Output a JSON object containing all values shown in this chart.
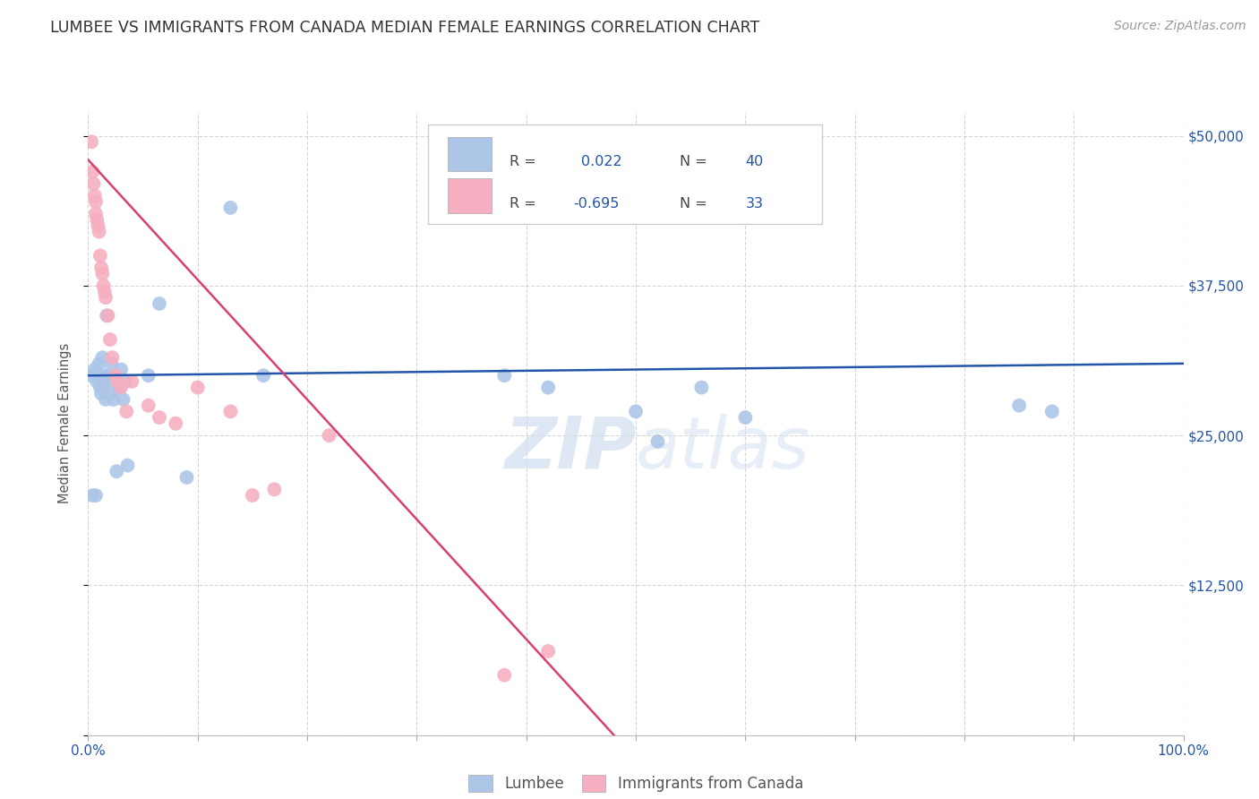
{
  "title": "LUMBEE VS IMMIGRANTS FROM CANADA MEDIAN FEMALE EARNINGS CORRELATION CHART",
  "source": "Source: ZipAtlas.com",
  "ylabel": "Median Female Earnings",
  "yticks": [
    0,
    12500,
    25000,
    37500,
    50000
  ],
  "ytick_labels": [
    "",
    "$12,500",
    "$25,000",
    "$37,500",
    "$50,000"
  ],
  "ylim": [
    0,
    52000
  ],
  "xlim": [
    0.0,
    1.0
  ],
  "legend_r_blue": "0.022",
  "legend_n_blue": "40",
  "legend_r_pink": "-0.695",
  "legend_n_pink": "33",
  "blue_color": "#adc6e8",
  "pink_color": "#f5afc0",
  "line_blue_color": "#2255aa",
  "line_pink_color": "#d94070",
  "watermark_color": "#d0dff0",
  "blue_scatter_x": [
    0.003,
    0.004,
    0.006,
    0.007,
    0.008,
    0.009,
    0.01,
    0.011,
    0.012,
    0.013,
    0.014,
    0.015,
    0.016,
    0.017,
    0.018,
    0.019,
    0.02,
    0.021,
    0.022,
    0.023,
    0.025,
    0.026,
    0.028,
    0.03,
    0.032,
    0.034,
    0.036,
    0.055,
    0.065,
    0.09,
    0.13,
    0.16,
    0.38,
    0.42,
    0.5,
    0.52,
    0.56,
    0.6,
    0.85,
    0.88
  ],
  "blue_scatter_y": [
    30000,
    20000,
    30500,
    20000,
    29500,
    30000,
    31000,
    29000,
    28500,
    31500,
    29000,
    30000,
    28000,
    35000,
    29500,
    30000,
    28500,
    31000,
    30000,
    28000,
    30000,
    22000,
    29000,
    30500,
    28000,
    29500,
    22500,
    30000,
    36000,
    21500,
    44000,
    30000,
    30000,
    29000,
    27000,
    24500,
    29000,
    26500,
    27500,
    27000
  ],
  "pink_scatter_x": [
    0.003,
    0.004,
    0.005,
    0.006,
    0.007,
    0.007,
    0.008,
    0.009,
    0.01,
    0.011,
    0.012,
    0.013,
    0.014,
    0.015,
    0.016,
    0.018,
    0.02,
    0.022,
    0.025,
    0.027,
    0.03,
    0.035,
    0.04,
    0.055,
    0.065,
    0.08,
    0.1,
    0.13,
    0.15,
    0.17,
    0.22,
    0.38,
    0.42
  ],
  "pink_scatter_y": [
    49500,
    47000,
    46000,
    45000,
    44500,
    43500,
    43000,
    42500,
    42000,
    40000,
    39000,
    38500,
    37500,
    37000,
    36500,
    35000,
    33000,
    31500,
    30000,
    29500,
    29000,
    27000,
    29500,
    27500,
    26500,
    26000,
    29000,
    27000,
    20000,
    20500,
    25000,
    5000,
    7000
  ],
  "blue_line_x": [
    0.0,
    1.0
  ],
  "blue_line_y": [
    30000,
    31000
  ],
  "pink_line_x": [
    0.0,
    0.48
  ],
  "pink_line_y": [
    48000,
    0
  ]
}
